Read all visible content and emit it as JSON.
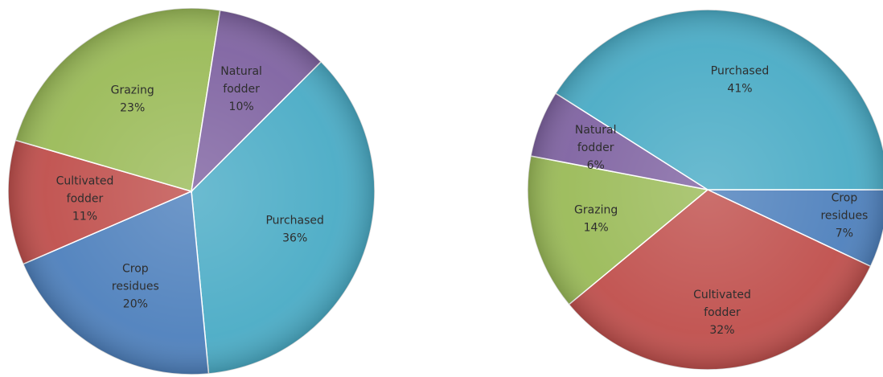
{
  "colors": {
    "purchased": "#4bacc6",
    "crop_residues": "#4f81bd",
    "cultivated_fodder": "#c0504d",
    "grazing": "#9bbb59",
    "natural_fodder": "#8064a2"
  },
  "chart_data": [
    {
      "type": "pie",
      "title": "",
      "slices": [
        {
          "key": "purchased",
          "name": "Purchased",
          "value": 36,
          "label_lines": [
            "Purchased",
            "36%"
          ]
        },
        {
          "key": "crop_residues",
          "name": "Crop residues",
          "value": 20,
          "label_lines": [
            "Crop",
            "residues",
            "20%"
          ]
        },
        {
          "key": "cultivated_fodder",
          "name": "Cultivated fodder",
          "value": 11,
          "label_lines": [
            "Cultivated",
            "fodder",
            "11%"
          ]
        },
        {
          "key": "grazing",
          "name": "Grazing",
          "value": 23,
          "label_lines": [
            "Grazing",
            "23%"
          ]
        },
        {
          "key": "natural_fodder",
          "name": "Natural fodder",
          "value": 10,
          "label_lines": [
            "Natural",
            "fodder",
            "10%"
          ]
        }
      ]
    },
    {
      "type": "pie",
      "title": "",
      "slices": [
        {
          "key": "crop_residues",
          "name": "Crop residues",
          "value": 7,
          "label_lines": [
            "Crop",
            "residues",
            "7%"
          ]
        },
        {
          "key": "cultivated_fodder",
          "name": "Cultivated fodder",
          "value": 32,
          "label_lines": [
            "Cultivated",
            "fodder",
            "32%"
          ]
        },
        {
          "key": "grazing",
          "name": "Grazing",
          "value": 14,
          "label_lines": [
            "Grazing",
            "14%"
          ]
        },
        {
          "key": "natural_fodder",
          "name": "Natural fodder",
          "value": 6,
          "label_lines": [
            "Natural",
            "fodder",
            "6%"
          ]
        },
        {
          "key": "purchased",
          "name": "Purchased",
          "value": 41,
          "label_lines": [
            "Purchased",
            "41%"
          ]
        }
      ]
    }
  ]
}
